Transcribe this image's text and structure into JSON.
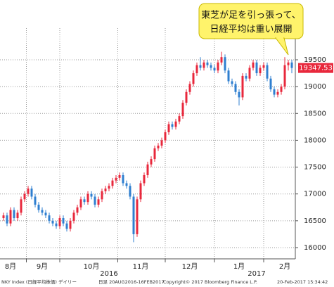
{
  "chart_data": {
    "type": "candlestick",
    "annotation": [
      "東芝が足を引っ張って、",
      "日経平均は重い展開"
    ],
    "last_label": "19347.53",
    "footer": [
      "NKY Index (日経平均株価) デイリー",
      "日足 20AUG2016-16FEB2017",
      "Copyright© 2017 Bloomberg Finance L.P.",
      "20-Feb-2017 15:34:42"
    ],
    "up_color": "#e8283c",
    "down_color": "#2f7fd0",
    "grid": true,
    "xlim": [
      -1,
      83
    ],
    "xticks": [
      {
        "value": 2,
        "label": "8月"
      },
      {
        "value": 11,
        "label": "9月"
      },
      {
        "value": 25,
        "label": "10月"
      },
      {
        "value": 39,
        "label": "11月"
      },
      {
        "value": 53,
        "label": "12月"
      },
      {
        "value": 67,
        "label": "1月"
      },
      {
        "value": 80,
        "label": "2月"
      }
    ],
    "year_labels": [
      {
        "value": 30,
        "label": "2016"
      },
      {
        "value": 72,
        "label": "2017"
      }
    ],
    "xgrid": [
      6.5,
      16,
      32.5,
      46,
      60,
      74
    ],
    "ylim": [
      15790,
      20090
    ],
    "yticks": [
      16000,
      16500,
      17000,
      17500,
      18000,
      18500,
      19000,
      19500
    ],
    "open": [
      16550,
      16600,
      16450,
      16700,
      16550,
      16650,
      16900,
      17000,
      17100,
      16950,
      16800,
      16700,
      16650,
      16600,
      16500,
      16450,
      16400,
      16550,
      16450,
      16350,
      16500,
      16650,
      16750,
      16900,
      16850,
      17000,
      16950,
      16800,
      16900,
      17050,
      17100,
      17150,
      17250,
      17300,
      17350,
      17200,
      17150,
      16950,
      16250,
      16900,
      17200,
      17350,
      17550,
      17650,
      17850,
      17900,
      18000,
      18150,
      18300,
      18250,
      18350,
      18450,
      18700,
      18900,
      19050,
      19250,
      19400,
      19350,
      19450,
      19400,
      19350,
      19300,
      19450,
      19550,
      19300,
      19100,
      19050,
      18900,
      18800,
      19200,
      19150,
      19350,
      19450,
      19250,
      19350,
      19400,
      19150,
      18950,
      18850,
      18900,
      19000,
      19400,
      19450
    ],
    "close": [
      16600,
      16450,
      16700,
      16550,
      16650,
      16900,
      17000,
      17100,
      16950,
      16800,
      16700,
      16650,
      16600,
      16500,
      16450,
      16400,
      16550,
      16450,
      16350,
      16500,
      16650,
      16750,
      16900,
      16850,
      17000,
      16950,
      16800,
      16900,
      17050,
      17100,
      17150,
      17250,
      17300,
      17350,
      17200,
      17150,
      16950,
      16250,
      16900,
      17200,
      17350,
      17550,
      17650,
      17850,
      17900,
      18000,
      18150,
      18300,
      18250,
      18350,
      18450,
      18700,
      18900,
      19050,
      19250,
      19400,
      19350,
      19450,
      19400,
      19350,
      19300,
      19450,
      19550,
      19300,
      19100,
      19050,
      18900,
      18800,
      19200,
      19150,
      19350,
      19450,
      19250,
      19350,
      19400,
      19150,
      18950,
      18850,
      18900,
      19000,
      19400,
      19450,
      19347.53
    ],
    "high": [
      16650,
      16650,
      16750,
      16750,
      16700,
      16950,
      17050,
      17150,
      17150,
      17000,
      16850,
      16750,
      16700,
      16650,
      16550,
      16500,
      16600,
      16600,
      16500,
      16550,
      16700,
      16800,
      16950,
      16950,
      17050,
      17050,
      17000,
      16950,
      17100,
      17150,
      17200,
      17300,
      17350,
      17400,
      17400,
      17250,
      17200,
      17000,
      16950,
      17250,
      17400,
      17600,
      17700,
      17900,
      17950,
      18050,
      18200,
      18350,
      18350,
      18400,
      18500,
      18750,
      18950,
      19100,
      19300,
      19450,
      19550,
      19500,
      19500,
      19450,
      19400,
      19500,
      19650,
      19600,
      19350,
      19150,
      19100,
      18950,
      19250,
      19250,
      19400,
      19500,
      19500,
      19400,
      19450,
      19450,
      19200,
      19000,
      18950,
      19050,
      19550,
      19500,
      19500
    ],
    "low": [
      16500,
      16400,
      16400,
      16500,
      16500,
      16600,
      16850,
      16950,
      16900,
      16750,
      16650,
      16600,
      16550,
      16450,
      16400,
      16350,
      16350,
      16400,
      16300,
      16300,
      16450,
      16600,
      16700,
      16800,
      16800,
      16900,
      16750,
      16750,
      16850,
      17000,
      17050,
      17100,
      17200,
      17250,
      17150,
      17100,
      16900,
      16100,
      16200,
      16850,
      17150,
      17300,
      17500,
      17600,
      17800,
      17850,
      17950,
      18100,
      18200,
      18200,
      18300,
      18400,
      18650,
      18850,
      19000,
      19200,
      19300,
      19300,
      19350,
      19300,
      19250,
      19250,
      19400,
      19250,
      19050,
      19000,
      18850,
      18650,
      18750,
      19100,
      19100,
      19300,
      19200,
      19200,
      19300,
      19100,
      18900,
      18800,
      18800,
      18850,
      18950,
      19300,
      19250
    ]
  }
}
